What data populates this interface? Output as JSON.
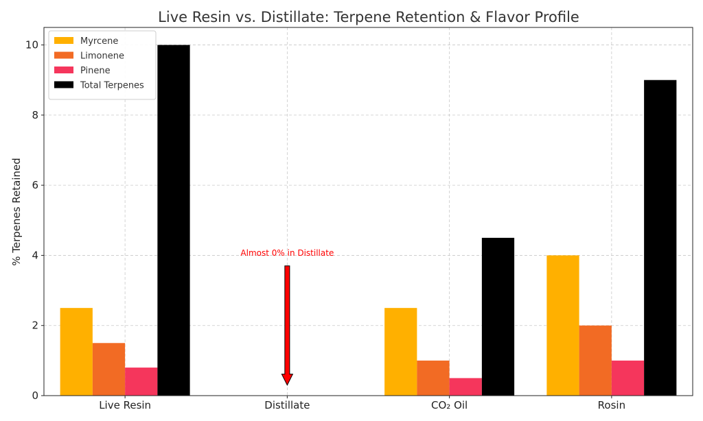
{
  "chart_data": {
    "type": "bar",
    "title": "Live Resin vs. Distillate: Terpene Retention & Flavor Profile",
    "xlabel": "",
    "ylabel": "% Terpenes Retained",
    "categories": [
      "Live Resin",
      "Distillate",
      "CO₂ Oil",
      "Rosin"
    ],
    "series": [
      {
        "name": "Myrcene",
        "color": "#ffb000",
        "values": [
          2.5,
          0,
          2.5,
          4
        ]
      },
      {
        "name": "Limonene",
        "color": "#f26b24",
        "values": [
          1.5,
          0,
          1,
          2
        ]
      },
      {
        "name": "Pinene",
        "color": "#f5365c",
        "values": [
          0.8,
          0,
          0.5,
          1
        ]
      },
      {
        "name": "Total Terpenes",
        "color": "#000000",
        "values": [
          10,
          0,
          4.5,
          9
        ]
      }
    ],
    "ylim": [
      0,
      10.5
    ],
    "yticks": [
      0,
      2,
      4,
      6,
      8,
      10
    ],
    "grid": true,
    "legend_position": "top-left",
    "annotation": {
      "text": "Almost 0% in Distillate",
      "category": "Distillate",
      "arrow_from_y": 3.7,
      "arrow_to_y": 0.3,
      "color": "#ff0000"
    }
  }
}
